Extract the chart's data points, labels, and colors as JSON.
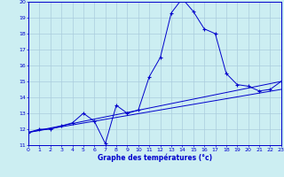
{
  "title": "Graphe des températures (°c)",
  "bg_color": "#cceef2",
  "line_color": "#0000cc",
  "grid_color": "#aaccdd",
  "xlim": [
    0,
    23
  ],
  "ylim": [
    11,
    20
  ],
  "xticks": [
    0,
    1,
    2,
    3,
    4,
    5,
    6,
    7,
    8,
    9,
    10,
    11,
    12,
    13,
    14,
    15,
    16,
    17,
    18,
    19,
    20,
    21,
    22,
    23
  ],
  "yticks": [
    11,
    12,
    13,
    14,
    15,
    16,
    17,
    18,
    19,
    20
  ],
  "curve1_x": [
    0,
    1,
    2,
    3,
    4,
    5,
    6,
    7,
    8,
    9,
    10,
    11,
    12,
    13,
    14,
    15,
    16,
    17,
    18,
    19,
    20,
    21,
    22,
    23
  ],
  "curve1_y": [
    11.8,
    12.0,
    12.0,
    12.2,
    12.4,
    13.0,
    12.5,
    11.1,
    13.5,
    13.0,
    13.2,
    15.3,
    16.5,
    19.3,
    20.2,
    19.4,
    18.3,
    18.0,
    15.5,
    14.8,
    14.7,
    14.4,
    14.5,
    15.0
  ],
  "curve2_x": [
    0,
    23
  ],
  "curve2_y": [
    11.8,
    15.0
  ],
  "curve3_x": [
    0,
    23
  ],
  "curve3_y": [
    11.8,
    14.5
  ]
}
